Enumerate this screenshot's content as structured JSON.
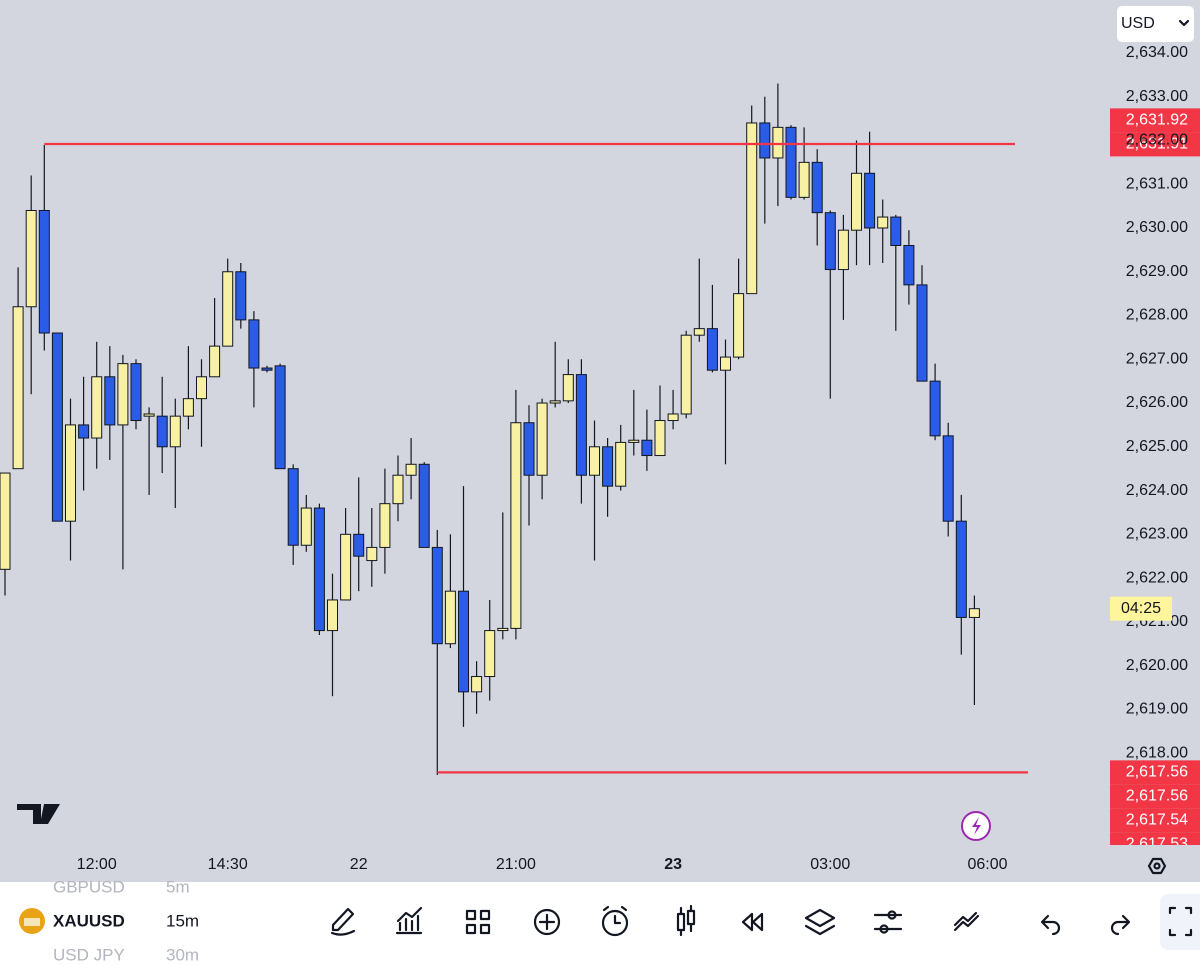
{
  "chart_data": {
    "type": "candlestick",
    "currency": "USD",
    "countdown": "04:25",
    "categories": [
      null,
      null,
      null,
      null,
      null,
      null,
      null,
      "12:00",
      null,
      null,
      null,
      null,
      null,
      null,
      null,
      null,
      null,
      "14:30",
      null,
      null,
      null,
      null,
      null,
      null,
      null,
      null,
      null,
      "22",
      null,
      null,
      null,
      null,
      null,
      null,
      null,
      null,
      null,
      null,
      null,
      "21:00",
      null,
      null,
      null,
      null,
      null,
      null,
      null,
      null,
      null,
      null,
      null,
      "23",
      null,
      null,
      null,
      null,
      null,
      null,
      null,
      null,
      null,
      null,
      null,
      "03:00",
      null,
      null,
      null,
      null,
      null,
      null,
      null,
      null,
      null,
      null,
      null,
      "06:00"
    ],
    "open": [
      2622.2,
      2624.5,
      2628.2,
      2630.4,
      2627.6,
      2623.3,
      2625.5,
      2625.2,
      2626.6,
      2625.5,
      2626.9,
      2625.7,
      2625.7,
      2625.0,
      2625.7,
      2626.1,
      2626.6,
      2627.3,
      2629.0,
      2627.9,
      2626.8,
      2626.85,
      2624.5,
      2622.75,
      2623.6,
      2620.8,
      2621.5,
      2623.0,
      2622.4,
      2622.7,
      2623.7,
      2624.35,
      2624.6,
      2622.7,
      2620.5,
      2621.7,
      2619.4,
      2619.75,
      2620.8,
      2620.85,
      2625.55,
      2624.35,
      2626.0,
      2626.05,
      2626.65,
      2624.35,
      2625.0,
      2624.1,
      2625.1,
      2625.15,
      2624.8,
      2625.6,
      2625.75,
      2627.55,
      2627.7,
      2626.75,
      2627.05,
      2628.5,
      2632.4,
      2631.6,
      2632.3,
      2630.7,
      2631.5,
      2630.35,
      2629.05,
      2629.95,
      2631.25,
      2630.0,
      2630.25,
      2629.6,
      2628.7,
      2626.5,
      2625.25,
      2623.3,
      2621.1,
      null
    ],
    "high": [
      2624.4,
      2629.1,
      2631.2,
      2631.9,
      2627.6,
      2626.1,
      2626.6,
      2627.4,
      2627.3,
      2627.1,
      2627.0,
      2625.9,
      2626.6,
      2626.1,
      2627.3,
      2627.0,
      2628.4,
      2629.3,
      2629.2,
      2628.1,
      2626.85,
      2626.9,
      2624.6,
      2623.9,
      2623.7,
      2622.1,
      2623.6,
      2624.3,
      2623.6,
      2624.5,
      2624.8,
      2625.2,
      2624.65,
      2623.1,
      2623.0,
      2624.1,
      2620.1,
      2621.5,
      2623.5,
      2626.3,
      2625.95,
      2626.1,
      2627.4,
      2627.0,
      2627.0,
      2625.6,
      2625.2,
      2625.5,
      2626.3,
      2625.85,
      2626.4,
      2626.3,
      2627.65,
      2629.3,
      2628.7,
      2627.45,
      2629.3,
      2632.8,
      2633.0,
      2633.3,
      2632.35,
      2632.3,
      2631.8,
      2630.4,
      2630.3,
      2632.0,
      2632.2,
      2630.65,
      2630.3,
      2629.95,
      2629.15,
      2626.9,
      2625.55,
      2623.9,
      2621.6,
      null
    ],
    "low": [
      2621.6,
      2624.5,
      2626.2,
      2627.2,
      2623.3,
      2622.4,
      2624.0,
      2624.5,
      2624.7,
      2622.2,
      2625.4,
      2623.9,
      2624.4,
      2623.6,
      2625.4,
      2625.0,
      2626.6,
      2627.3,
      2627.7,
      2625.9,
      2626.7,
      2624.5,
      2622.3,
      2622.6,
      2620.7,
      2619.3,
      2621.5,
      2621.7,
      2621.8,
      2622.1,
      2623.3,
      2623.8,
      2622.7,
      2617.5,
      2620.4,
      2618.6,
      2618.9,
      2619.2,
      2620.6,
      2620.6,
      2623.2,
      2623.8,
      2625.9,
      2626.0,
      2623.7,
      2622.4,
      2623.4,
      2624.0,
      2624.8,
      2624.45,
      2624.8,
      2625.4,
      2625.65,
      2627.4,
      2626.7,
      2624.6,
      2627.0,
      2628.5,
      2630.1,
      2630.5,
      2630.65,
      2630.65,
      2629.6,
      2626.1,
      2627.9,
      2629.15,
      2629.15,
      2629.2,
      2627.65,
      2628.25,
      2626.5,
      2625.15,
      2622.95,
      2620.25,
      2619.1,
      null
    ],
    "close": [
      2624.4,
      2628.2,
      2630.4,
      2627.6,
      2623.3,
      2625.5,
      2625.2,
      2626.6,
      2625.5,
      2626.9,
      2625.6,
      2625.75,
      2625.0,
      2625.7,
      2626.1,
      2626.6,
      2627.3,
      2629.0,
      2627.9,
      2626.8,
      2626.75,
      2624.5,
      2622.75,
      2623.6,
      2620.8,
      2621.5,
      2623.0,
      2622.5,
      2622.7,
      2623.7,
      2624.35,
      2624.6,
      2622.7,
      2620.5,
      2621.7,
      2619.4,
      2619.75,
      2620.8,
      2620.85,
      2625.55,
      2624.35,
      2626.0,
      2626.05,
      2626.65,
      2624.35,
      2625.0,
      2624.1,
      2625.1,
      2625.15,
      2624.8,
      2625.6,
      2625.75,
      2627.55,
      2627.7,
      2626.75,
      2627.05,
      2628.5,
      2632.4,
      2631.6,
      2632.3,
      2630.7,
      2631.5,
      2630.35,
      2629.05,
      2629.95,
      2631.25,
      2630.0,
      2630.25,
      2629.6,
      2628.7,
      2626.5,
      2625.25,
      2623.3,
      2621.1,
      2621.3,
      null
    ],
    "up_color": "#f8f0a2",
    "down_color": "#2a5ce8",
    "background": "#d3d6df",
    "ylim": [
      2615.9,
      2635.21
    ],
    "yticks": [
      {
        "value": 2618,
        "label": "2,618.00"
      },
      {
        "value": 2619,
        "label": "2,619.00"
      },
      {
        "value": 2620,
        "label": "2,620.00"
      },
      {
        "value": 2621,
        "label": "2,621.00"
      },
      {
        "value": 2622,
        "label": "2,622.00"
      },
      {
        "value": 2623,
        "label": "2,623.00"
      },
      {
        "value": 2624,
        "label": "2,624.00"
      },
      {
        "value": 2625,
        "label": "2,625.00"
      },
      {
        "value": 2626,
        "label": "2,626.00"
      },
      {
        "value": 2627,
        "label": "2,627.00"
      },
      {
        "value": 2628,
        "label": "2,628.00"
      },
      {
        "value": 2629,
        "label": "2,629.00"
      },
      {
        "value": 2630,
        "label": "2,630.00"
      },
      {
        "value": 2631,
        "label": "2,631.00"
      },
      {
        "value": 2632,
        "label": "2,632.00"
      },
      {
        "value": 2633,
        "label": "2,633.00"
      },
      {
        "value": 2634,
        "label": "2,634.00"
      }
    ],
    "hlines": [
      {
        "value": 2631.92,
        "anchor": 3,
        "color": "#f23645"
      },
      {
        "value": 2617.56,
        "anchor": 33,
        "color": "#f23645"
      }
    ],
    "price_tags": [
      {
        "value": 2631.92,
        "label": "2,631.92"
      },
      {
        "value": 2631.91,
        "label": "2,631.91"
      },
      {
        "value": 2617.56,
        "label": "2,617.56"
      },
      {
        "value": 2617.56,
        "label": "2,617.56"
      },
      {
        "value": 2617.54,
        "label": "2,617.54"
      },
      {
        "value": 2617.53,
        "label": "2,617.53"
      }
    ]
  },
  "toolbar": {
    "symbols": [
      {
        "name": "GBPUSD",
        "interval": "5m"
      },
      {
        "name": "XAUUSD",
        "interval": "15m"
      },
      {
        "name": "USD JPY",
        "interval": "30m"
      }
    ]
  }
}
